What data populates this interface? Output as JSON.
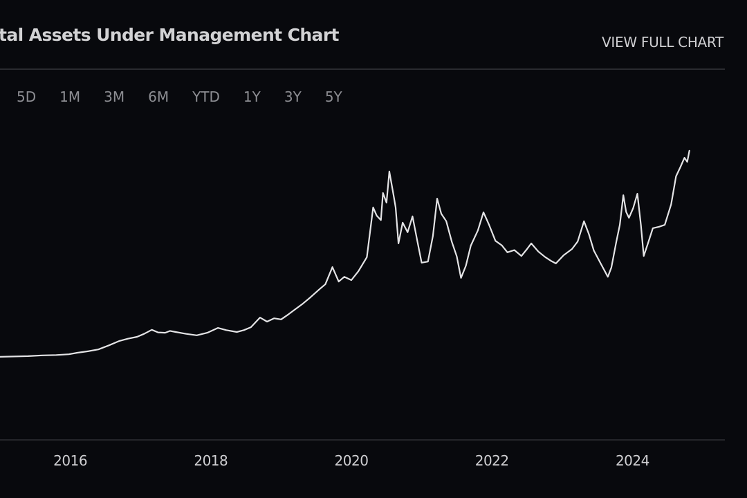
{
  "header": {
    "title": "tal Assets Under Management Chart",
    "view_full_label": "VIEW FULL CHART"
  },
  "ranges": [
    "5D",
    "1M",
    "3M",
    "6M",
    "YTD",
    "1Y",
    "3Y",
    "5Y"
  ],
  "colors": {
    "background": "#08090d",
    "line": "#e4e4e6",
    "rule": "#2a2b30"
  },
  "chart_data": {
    "type": "line",
    "title": "tal Assets Under Management Chart",
    "xlabel": "",
    "ylabel": "",
    "x_ticks": [
      "2016",
      "2018",
      "2020",
      "2022",
      "2024"
    ],
    "x_tick_values": [
      2016,
      2018,
      2020,
      2022,
      2024
    ],
    "xlim": [
      2015.0,
      2025.1
    ],
    "ylim": [
      0,
      100
    ],
    "y_units": "relative index (no y-axis labels shown)",
    "grid": false,
    "legend": "none",
    "series": [
      {
        "name": "Total Assets Under Management",
        "x": [
          2015.0,
          2015.2,
          2015.4,
          2015.6,
          2015.8,
          2015.98,
          2016.1,
          2016.25,
          2016.4,
          2016.55,
          2016.7,
          2016.82,
          2016.95,
          2017.05,
          2017.16,
          2017.25,
          2017.35,
          2017.42,
          2017.5,
          2017.65,
          2017.8,
          2017.95,
          2018.1,
          2018.22,
          2018.37,
          2018.47,
          2018.57,
          2018.7,
          2018.8,
          2018.9,
          2019.0,
          2019.1,
          2019.2,
          2019.3,
          2019.42,
          2019.55,
          2019.63,
          2019.73,
          2019.82,
          2019.9,
          2020.0,
          2020.1,
          2020.22,
          2020.31,
          2020.36,
          2020.42,
          2020.45,
          2020.5,
          2020.54,
          2020.6,
          2020.63,
          2020.67,
          2020.73,
          2020.8,
          2020.87,
          2020.94,
          2021.0,
          2021.09,
          2021.16,
          2021.22,
          2021.28,
          2021.35,
          2021.43,
          2021.5,
          2021.56,
          2021.63,
          2021.7,
          2021.8,
          2021.88,
          2021.96,
          2022.05,
          2022.14,
          2022.22,
          2022.32,
          2022.42,
          2022.5,
          2022.56,
          2022.66,
          2022.76,
          2022.84,
          2022.91,
          2023.02,
          2023.14,
          2023.22,
          2023.31,
          2023.38,
          2023.45,
          2023.55,
          2023.65,
          2023.7,
          2023.77,
          2023.82,
          2023.87,
          2023.91,
          2023.95,
          2024.01,
          2024.07,
          2024.12,
          2024.16,
          2024.22,
          2024.29,
          2024.38,
          2024.46,
          2024.55,
          2024.62,
          2024.68,
          2024.74,
          2024.78,
          2024.81
        ],
        "values": [
          22.4,
          22.5,
          22.6,
          22.8,
          22.9,
          23.1,
          23.5,
          23.9,
          24.4,
          25.5,
          26.7,
          27.3,
          27.8,
          28.6,
          29.7,
          29.0,
          28.9,
          29.4,
          29.1,
          28.6,
          28.2,
          28.9,
          30.2,
          29.6,
          29.1,
          29.6,
          30.4,
          33.0,
          31.9,
          32.8,
          32.5,
          33.8,
          35.2,
          36.6,
          38.5,
          40.7,
          42.0,
          46.6,
          42.7,
          44.0,
          43.1,
          45.5,
          49.3,
          62.7,
          60.5,
          59.3,
          66.6,
          64.0,
          72.4,
          66.0,
          62.7,
          53.0,
          58.6,
          56.0,
          60.3,
          53.5,
          47.8,
          48.1,
          55.0,
          65.1,
          61.0,
          59.0,
          53.4,
          49.5,
          43.7,
          47.0,
          52.4,
          56.5,
          61.4,
          58.0,
          53.7,
          52.5,
          50.6,
          51.2,
          49.6,
          51.5,
          53.0,
          50.8,
          49.3,
          48.3,
          47.6,
          49.8,
          51.5,
          53.5,
          59.0,
          55.5,
          51.1,
          47.5,
          44.0,
          46.5,
          53.4,
          58.0,
          66.0,
          61.5,
          59.9,
          62.5,
          66.4,
          58.0,
          49.6,
          53.0,
          57.1,
          57.5,
          58.0,
          63.5,
          71.1,
          73.5,
          76.1,
          75.0,
          78.0
        ]
      }
    ]
  }
}
